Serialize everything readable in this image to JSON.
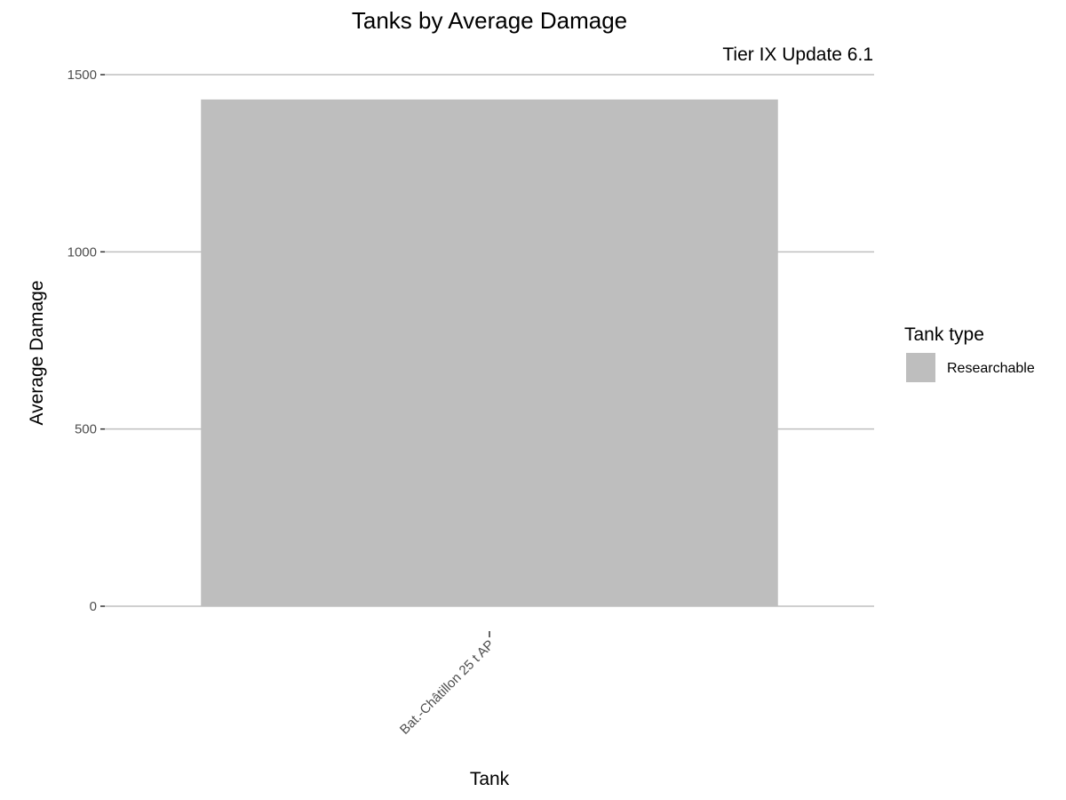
{
  "chart_data": {
    "type": "bar",
    "title": "Tanks by Average Damage",
    "subtitle": "Tier IX Update 6.1",
    "xlabel": "Tank",
    "ylabel": "Average Damage",
    "categories": [
      "Bat.-Châtillon 25 t AP"
    ],
    "series": [
      {
        "name": "Researchable",
        "values": [
          1430
        ],
        "color": "#bebebe"
      }
    ],
    "ylim": [
      0,
      1500
    ],
    "yticks": [
      0,
      500,
      1000,
      1500
    ],
    "ytick_labels": [
      "0",
      "500",
      "1000",
      "1500"
    ],
    "x_tick_rotation": "45 degrees",
    "grid": "horizontal major lines",
    "legend": {
      "title": "Tank type",
      "position": "right",
      "entries": [
        {
          "label": "Researchable",
          "color": "#bebebe"
        }
      ]
    }
  },
  "colors": {
    "background": "#ffffff",
    "grid": "#bfbfbf",
    "bar": "#bebebe",
    "tick_text": "#4d4d4d"
  }
}
